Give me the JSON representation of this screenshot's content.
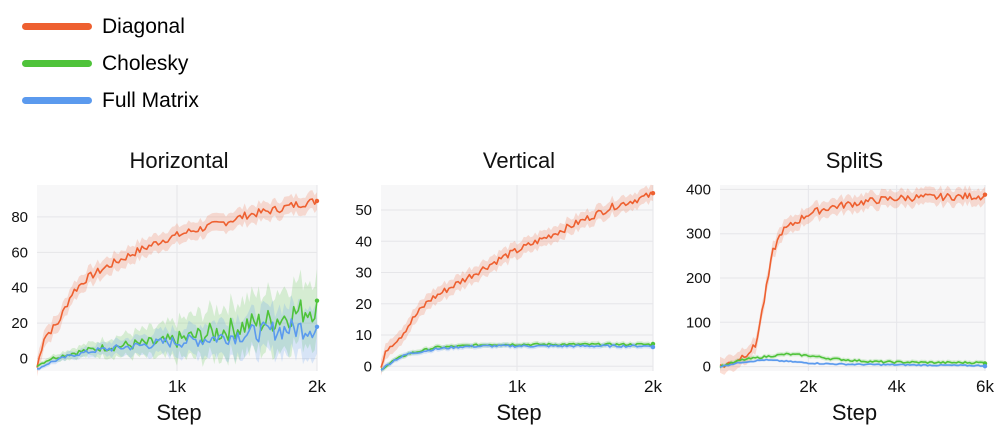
{
  "colors": {
    "diagonal": "#ee6030",
    "cholesky": "#4fc33a",
    "full_matrix": "#5b9aee"
  },
  "legend": [
    {
      "label": "Diagonal",
      "color": "#ee6030"
    },
    {
      "label": "Cholesky",
      "color": "#4fc33a"
    },
    {
      "label": "Full Matrix",
      "color": "#5b9aee"
    }
  ],
  "chart_data": [
    {
      "type": "line",
      "title": "Horizontal",
      "xlabel": "Step",
      "ylabel": "",
      "xlim": [
        0,
        2000
      ],
      "ylim": [
        -7,
        98
      ],
      "xticks": [
        1000,
        2000
      ],
      "xtick_labels": [
        "1k",
        "2k"
      ],
      "yticks": [
        0,
        20,
        40,
        60,
        80
      ],
      "ytick_labels": [
        "0",
        "20",
        "40",
        "60",
        "80"
      ],
      "series": [
        {
          "name": "Diagonal",
          "band": 5,
          "points": [
            [
              0,
              -5
            ],
            [
              50,
              12
            ],
            [
              150,
              20
            ],
            [
              250,
              37
            ],
            [
              350,
              45
            ],
            [
              500,
              52
            ],
            [
              700,
              60
            ],
            [
              900,
              67
            ],
            [
              1100,
              72
            ],
            [
              1300,
              76
            ],
            [
              1500,
              81
            ],
            [
              1700,
              84
            ],
            [
              1850,
              87
            ],
            [
              2000,
              89
            ]
          ]
        },
        {
          "name": "Cholesky",
          "band_pts": [
            [
              0,
              1
            ],
            [
              400,
              4
            ],
            [
              800,
              8
            ],
            [
              1200,
              13
            ],
            [
              1600,
              16
            ],
            [
              2000,
              18
            ]
          ],
          "points": [
            [
              0,
              -4
            ],
            [
              100,
              0
            ],
            [
              250,
              3
            ],
            [
              450,
              6
            ],
            [
              700,
              8
            ],
            [
              900,
              9
            ],
            [
              1100,
              12
            ],
            [
              1300,
              15
            ],
            [
              1500,
              19
            ],
            [
              1700,
              22
            ],
            [
              1850,
              26
            ],
            [
              2000,
              29
            ]
          ]
        },
        {
          "name": "Full Matrix",
          "band_pts": [
            [
              0,
              1
            ],
            [
              400,
              3
            ],
            [
              800,
              6
            ],
            [
              1200,
              9
            ],
            [
              1600,
              12
            ],
            [
              2000,
              15
            ]
          ],
          "points": [
            [
              0,
              -6
            ],
            [
              100,
              -2
            ],
            [
              250,
              2
            ],
            [
              450,
              5
            ],
            [
              700,
              7
            ],
            [
              900,
              9
            ],
            [
              1100,
              10
            ],
            [
              1300,
              12
            ],
            [
              1500,
              14
            ],
            [
              1700,
              16
            ],
            [
              1850,
              17
            ],
            [
              2000,
              18
            ]
          ]
        }
      ]
    },
    {
      "type": "line",
      "title": "Vertical",
      "xlabel": "Step",
      "ylabel": "",
      "xlim": [
        0,
        2000
      ],
      "ylim": [
        -1.5,
        58
      ],
      "xticks": [
        1000,
        2000
      ],
      "xtick_labels": [
        "1k",
        "2k"
      ],
      "yticks": [
        0,
        10,
        20,
        30,
        40,
        50
      ],
      "ytick_labels": [
        "0",
        "10",
        "20",
        "30",
        "40",
        "50"
      ],
      "series": [
        {
          "name": "Diagonal",
          "band": 2.5,
          "points": [
            [
              0,
              -0.5
            ],
            [
              50,
              6
            ],
            [
              150,
              10
            ],
            [
              250,
              16
            ],
            [
              350,
              21
            ],
            [
              500,
              25
            ],
            [
              700,
              30
            ],
            [
              900,
              35
            ],
            [
              1100,
              39
            ],
            [
              1300,
              43
            ],
            [
              1500,
              47
            ],
            [
              1700,
              51
            ],
            [
              1850,
              53
            ],
            [
              2000,
              55
            ]
          ]
        },
        {
          "name": "Cholesky",
          "band": 0.8,
          "points": [
            [
              0,
              -1
            ],
            [
              100,
              2
            ],
            [
              200,
              4
            ],
            [
              400,
              6
            ],
            [
              600,
              6.5
            ],
            [
              800,
              7
            ],
            [
              1000,
              7
            ],
            [
              1200,
              7
            ],
            [
              1500,
              7
            ],
            [
              1800,
              7
            ],
            [
              2000,
              7
            ]
          ]
        },
        {
          "name": "Full Matrix",
          "band": 0.8,
          "points": [
            [
              0,
              -1
            ],
            [
              100,
              2
            ],
            [
              200,
              4
            ],
            [
              400,
              5.5
            ],
            [
              600,
              6.3
            ],
            [
              800,
              6.5
            ],
            [
              1000,
              6.5
            ],
            [
              1200,
              6.5
            ],
            [
              1500,
              6.5
            ],
            [
              1800,
              6.5
            ],
            [
              2000,
              6.5
            ]
          ]
        }
      ]
    },
    {
      "type": "line",
      "title": "SplitS",
      "xlabel": "Step",
      "ylabel": "",
      "xlim": [
        0,
        6000
      ],
      "ylim": [
        -10,
        410
      ],
      "xticks": [
        2000,
        4000,
        6000
      ],
      "xtick_labels": [
        "2k",
        "4k",
        "6k"
      ],
      "yticks": [
        0,
        100,
        200,
        300,
        400
      ],
      "ytick_labels": [
        "0",
        "100",
        "200",
        "300",
        "400"
      ],
      "series": [
        {
          "name": "Diagonal",
          "band": 18,
          "points": [
            [
              0,
              0
            ],
            [
              300,
              10
            ],
            [
              600,
              30
            ],
            [
              800,
              45
            ],
            [
              1000,
              150
            ],
            [
              1200,
              260
            ],
            [
              1400,
              305
            ],
            [
              1700,
              325
            ],
            [
              2000,
              345
            ],
            [
              2500,
              360
            ],
            [
              3000,
              368
            ],
            [
              3500,
              375
            ],
            [
              4000,
              380
            ],
            [
              4500,
              382
            ],
            [
              5000,
              383
            ],
            [
              5500,
              384
            ],
            [
              6000,
              385
            ]
          ]
        },
        {
          "name": "Cholesky",
          "band": 5,
          "points": [
            [
              0,
              0
            ],
            [
              500,
              15
            ],
            [
              1000,
              22
            ],
            [
              1500,
              28
            ],
            [
              2000,
              25
            ],
            [
              2500,
              18
            ],
            [
              3000,
              14
            ],
            [
              3500,
              11
            ],
            [
              4000,
              10
            ],
            [
              5000,
              9
            ],
            [
              6000,
              9
            ]
          ]
        },
        {
          "name": "Full Matrix",
          "band": 3,
          "points": [
            [
              0,
              0
            ],
            [
              500,
              10
            ],
            [
              1000,
              15
            ],
            [
              1500,
              12
            ],
            [
              2000,
              8
            ],
            [
              2500,
              6
            ],
            [
              3000,
              5
            ],
            [
              4000,
              4
            ],
            [
              5000,
              3
            ],
            [
              6000,
              2
            ]
          ]
        }
      ]
    }
  ]
}
